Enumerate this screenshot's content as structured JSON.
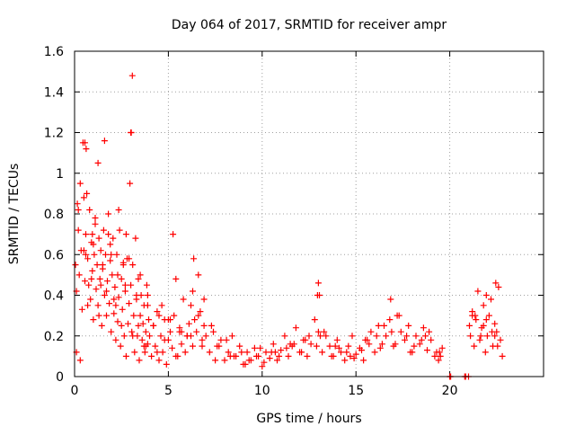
{
  "chart_data": {
    "type": "scatter",
    "title": "Day 064 of 2017, SRMTID for receiver ampr",
    "xlabel": "GPS time / hours",
    "ylabel": "SRMTID / TECUs",
    "xlim": [
      0,
      25
    ],
    "ylim": [
      0,
      1.6
    ],
    "xticks": [
      0,
      5,
      10,
      15,
      20
    ],
    "xtick_labels": [
      "0",
      "5",
      "10",
      "15",
      "20"
    ],
    "yticks": [
      0,
      0.2,
      0.4,
      0.6,
      0.8,
      1,
      1.2,
      1.4,
      1.6
    ],
    "ytick_labels": [
      "0",
      "0.2",
      "0.4",
      "0.6",
      "0.8",
      "1",
      "1.2",
      "1.4",
      "1.6"
    ],
    "grid": true,
    "marker": "plus",
    "series": [
      {
        "name": "SRMTID",
        "color": "#ff0000",
        "x": [
          0.05,
          0.1,
          0.15,
          0.2,
          0.25,
          0.3,
          0.35,
          0.4,
          0.45,
          0.5,
          0.55,
          0.6,
          0.65,
          0.7,
          0.75,
          0.8,
          0.85,
          0.9,
          0.95,
          1.0,
          1.05,
          1.1,
          1.15,
          1.2,
          1.25,
          1.3,
          1.35,
          1.4,
          1.45,
          1.5,
          1.55,
          1.6,
          1.65,
          1.7,
          1.75,
          1.8,
          1.85,
          1.9,
          1.95,
          2.0,
          2.05,
          2.1,
          2.15,
          2.2,
          2.25,
          2.3,
          2.35,
          2.4,
          2.45,
          2.5,
          2.55,
          2.6,
          2.65,
          2.7,
          2.75,
          2.8,
          2.85,
          2.9,
          2.95,
          3.0,
          3.05,
          3.1,
          3.15,
          3.2,
          3.25,
          3.3,
          3.35,
          3.4,
          3.45,
          3.5,
          3.55,
          3.6,
          3.65,
          3.7,
          3.75,
          3.8,
          3.85,
          3.9,
          3.95,
          4.0,
          4.1,
          4.2,
          4.3,
          4.4,
          4.5,
          4.6,
          4.7,
          4.8,
          4.9,
          5.0,
          5.1,
          5.2,
          5.3,
          5.4,
          5.5,
          5.6,
          5.7,
          5.8,
          5.9,
          6.0,
          6.1,
          6.2,
          6.3,
          6.4,
          6.5,
          6.6,
          6.7,
          6.8,
          6.9,
          7.0,
          7.2,
          7.4,
          7.6,
          7.8,
          8.0,
          8.2,
          8.4,
          8.6,
          8.8,
          9.0,
          9.2,
          9.4,
          9.6,
          9.8,
          10.0,
          10.2,
          10.4,
          10.6,
          10.8,
          11.0,
          11.2,
          11.4,
          11.6,
          11.8,
          12.0,
          12.2,
          12.4,
          12.6,
          12.8,
          13.0,
          13.2,
          13.4,
          13.6,
          13.8,
          14.0,
          14.2,
          14.4,
          14.6,
          14.8,
          15.0,
          15.2,
          15.4,
          15.6,
          15.8,
          16.0,
          16.2,
          16.4,
          16.6,
          16.8,
          17.0,
          17.2,
          17.4,
          17.6,
          17.8,
          18.0,
          18.2,
          18.4,
          18.6,
          18.8,
          19.0,
          19.2,
          19.4,
          19.6,
          20.0,
          20.8,
          21.0,
          21.1,
          21.2,
          21.3,
          21.4,
          21.5,
          21.6,
          21.7,
          21.8,
          21.9,
          22.0,
          22.1,
          22.2,
          22.3,
          22.4,
          22.5,
          22.6,
          22.7,
          22.8,
          0.1,
          0.3,
          0.5,
          0.7,
          0.9,
          1.1,
          1.3,
          1.5,
          1.7,
          1.9,
          2.1,
          2.3,
          2.5,
          2.7,
          2.9,
          3.1,
          3.3,
          3.5,
          3.7,
          3.9,
          4.2,
          4.5,
          4.8,
          5.1,
          5.4,
          5.7,
          6.0,
          6.3,
          6.6,
          6.9,
          7.3,
          7.7,
          8.1,
          8.5,
          8.9,
          9.3,
          9.7,
          10.1,
          10.5,
          10.9,
          11.3,
          11.7,
          12.1,
          12.5,
          12.9,
          13.3,
          13.7,
          14.1,
          14.5,
          14.9,
          15.3,
          15.7,
          16.1,
          16.5,
          16.9,
          17.3,
          17.7,
          18.1,
          18.5,
          18.9,
          19.3,
          21.05,
          21.35,
          21.65,
          21.95,
          22.25,
          22.55,
          0.2,
          0.6,
          1.0,
          1.4,
          1.8,
          2.2,
          2.6,
          3.0,
          3.4,
          3.8,
          4.4,
          5.0,
          5.6,
          6.2,
          6.8,
          7.5,
          8.3,
          9.1,
          9.9,
          10.7,
          11.5,
          12.3,
          13.1,
          13.9,
          14.7,
          15.5,
          16.3,
          17.1,
          17.9,
          18.7,
          19.5,
          21.2,
          21.8,
          22.4,
          0.55,
          1.6,
          2.35,
          3.02,
          3.08,
          1.25,
          0.62,
          0.95,
          6.35,
          5.25,
          13.0,
          13.05,
          16.85,
          22.45,
          21.95,
          12.95,
          1.95,
          2.75,
          3.9,
          4.65,
          19.45,
          20.05,
          20.85
        ],
        "y": [
          0.55,
          0.42,
          0.85,
          0.72,
          0.5,
          0.95,
          0.62,
          0.33,
          1.15,
          0.88,
          0.47,
          0.7,
          0.9,
          0.58,
          0.45,
          0.82,
          0.38,
          0.66,
          0.52,
          0.28,
          0.6,
          0.75,
          0.43,
          0.55,
          0.35,
          0.68,
          0.48,
          0.62,
          0.25,
          0.53,
          0.72,
          0.4,
          0.6,
          0.3,
          0.47,
          0.8,
          0.36,
          0.57,
          0.22,
          0.5,
          0.68,
          0.31,
          0.44,
          0.18,
          0.6,
          0.27,
          0.39,
          0.72,
          0.15,
          0.48,
          0.33,
          0.56,
          0.2,
          0.42,
          0.1,
          0.58,
          0.26,
          0.36,
          0.95,
          0.45,
          0.22,
          0.55,
          0.3,
          0.12,
          0.68,
          0.38,
          0.2,
          0.48,
          0.08,
          0.3,
          0.4,
          0.18,
          0.26,
          0.35,
          0.12,
          0.22,
          0.45,
          0.16,
          0.28,
          0.2,
          0.1,
          0.25,
          0.15,
          0.32,
          0.08,
          0.2,
          0.12,
          0.28,
          0.06,
          0.18,
          0.22,
          0.14,
          0.3,
          0.48,
          0.1,
          0.24,
          0.16,
          0.38,
          0.12,
          0.2,
          0.26,
          0.35,
          0.42,
          0.28,
          0.22,
          0.5,
          0.32,
          0.18,
          0.25,
          0.2,
          0.12,
          0.22,
          0.15,
          0.18,
          0.08,
          0.12,
          0.2,
          0.1,
          0.15,
          0.06,
          0.12,
          0.08,
          0.14,
          0.1,
          0.05,
          0.12,
          0.09,
          0.16,
          0.08,
          0.13,
          0.2,
          0.1,
          0.15,
          0.24,
          0.12,
          0.18,
          0.1,
          0.16,
          0.28,
          0.22,
          0.12,
          0.2,
          0.15,
          0.1,
          0.18,
          0.12,
          0.08,
          0.15,
          0.2,
          0.11,
          0.14,
          0.08,
          0.18,
          0.22,
          0.12,
          0.25,
          0.16,
          0.2,
          0.28,
          0.15,
          0.3,
          0.22,
          0.18,
          0.25,
          0.12,
          0.2,
          0.16,
          0.24,
          0.13,
          0.18,
          0.1,
          0.08,
          0.14,
          0.0,
          0.0,
          0.0,
          0.2,
          0.32,
          0.15,
          0.28,
          0.42,
          0.18,
          0.24,
          0.35,
          0.12,
          0.2,
          0.3,
          0.38,
          0.15,
          0.26,
          0.22,
          0.44,
          0.18,
          0.1,
          0.12,
          0.08,
          0.62,
          0.35,
          0.48,
          0.78,
          0.3,
          0.55,
          0.42,
          0.65,
          0.38,
          0.5,
          0.25,
          0.45,
          0.58,
          0.2,
          0.4,
          0.5,
          0.15,
          0.35,
          0.25,
          0.3,
          0.18,
          0.28,
          0.1,
          0.22,
          0.2,
          0.15,
          0.3,
          0.38,
          0.25,
          0.15,
          0.18,
          0.1,
          0.12,
          0.08,
          0.1,
          0.07,
          0.12,
          0.1,
          0.14,
          0.16,
          0.12,
          0.2,
          0.15,
          0.22,
          0.1,
          0.14,
          0.12,
          0.09,
          0.13,
          0.16,
          0.2,
          0.25,
          0.22,
          0.3,
          0.2,
          0.15,
          0.18,
          0.22,
          0.12,
          0.25,
          0.3,
          0.2,
          0.28,
          0.22,
          0.15,
          0.82,
          0.6,
          0.65,
          0.45,
          0.7,
          0.35,
          0.55,
          1.2,
          0.25,
          0.15,
          0.12,
          0.28,
          0.22,
          0.2,
          0.15,
          0.08,
          0.1,
          0.06,
          0.14,
          0.12,
          0.16,
          0.18,
          0.2,
          0.15,
          0.1,
          0.18,
          0.14,
          0.16,
          0.12,
          0.2,
          0.1,
          0.3,
          0.25,
          0.2,
          1.15,
          1.16,
          0.82,
          1.2,
          1.48,
          1.05,
          1.12,
          0.7,
          0.58,
          0.7,
          0.46,
          0.4,
          0.38,
          0.46,
          0.4,
          0.4,
          0.6,
          0.7,
          0.4,
          0.35,
          0.12,
          0.0,
          0.0
        ]
      }
    ]
  }
}
